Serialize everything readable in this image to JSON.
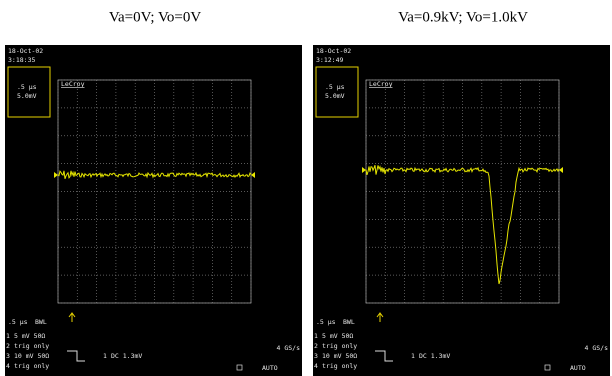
{
  "panels": [
    {
      "caption": "Va=0V; Vo=0V",
      "date": "18-Oct-02",
      "time": "3:18:35",
      "timebase": ".5 µs",
      "volts": "5.0mV",
      "brand": "LeCroy",
      "bottom_timebase": ".5 µs",
      "bwl": "BWL",
      "channel_numbers": [
        "1",
        "2",
        "3",
        "4"
      ],
      "channels": [
        "5 mV 50Ω",
        "trig only",
        "10 mV 50Ω",
        "trig only"
      ],
      "trigger_channel": "1",
      "trigger": "DC 1.3mV",
      "sample_rate": "4 GS/s",
      "mode": "AUTO"
    },
    {
      "caption": "Va=0.9kV; Vo=1.0kV",
      "date": "18-Oct-02",
      "time": "3:12:49",
      "timebase": ".5 µs",
      "volts": "5.0mV",
      "brand": "LeCroy",
      "bottom_timebase": ".5 µs",
      "bwl": "BWL",
      "channel_numbers": [
        "1",
        "2",
        "3",
        "4"
      ],
      "channels": [
        "5 mV 50Ω",
        "trig only",
        "10 mV 50Ω",
        "trig only"
      ],
      "trigger_channel": "1",
      "trigger": "DC 1.3mV",
      "sample_rate": "4 GS/s",
      "mode": "AUTO"
    }
  ]
}
